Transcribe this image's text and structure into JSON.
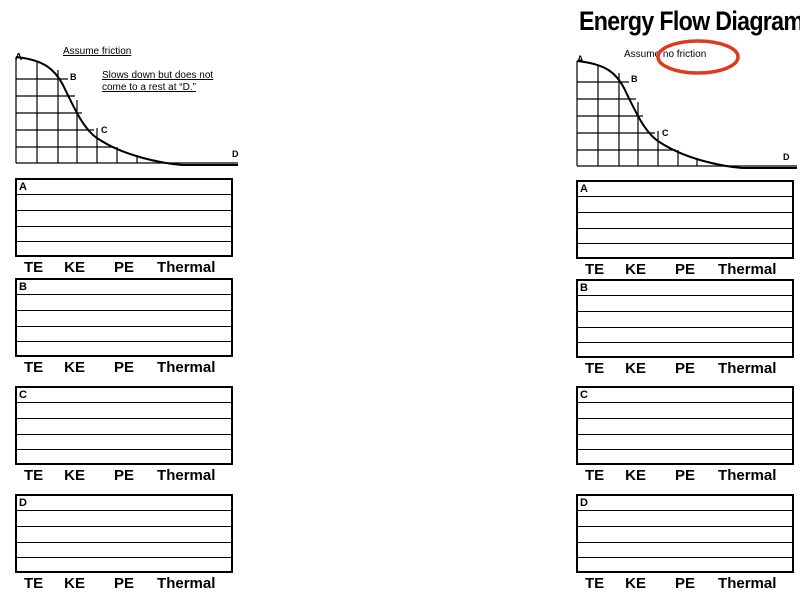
{
  "title": "Energy Flow Diagrams",
  "left": {
    "assumption": "Assume friction",
    "note_line1": "Slows down but does not",
    "note_line2": "come to a rest at “D.”",
    "points": [
      "A",
      "B",
      "C",
      "D"
    ]
  },
  "right": {
    "assumption_prefix": "Assume",
    "assumption_circled": "no friction",
    "points": [
      "A",
      "B",
      "C",
      "D"
    ]
  },
  "box_labels": [
    "A",
    "B",
    "C",
    "D"
  ],
  "energy_labels": {
    "te": "TE",
    "ke": "KE",
    "pe": "PE",
    "thermal": "Thermal"
  },
  "colors": {
    "circle": "#e03a1e"
  }
}
